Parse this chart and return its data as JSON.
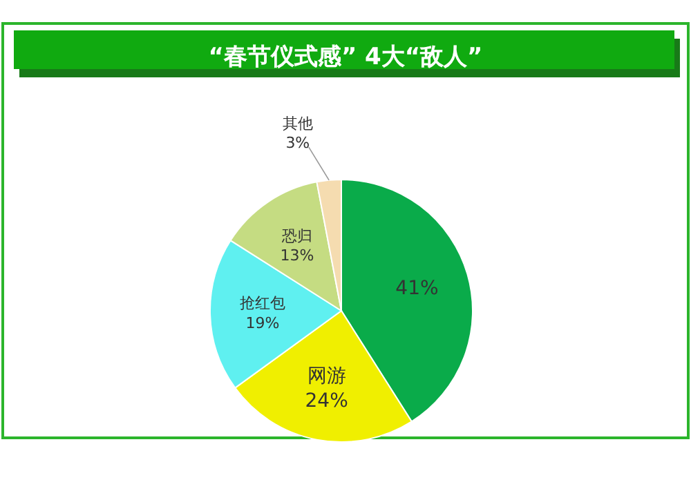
{
  "chart_data": {
    "type": "pie",
    "title": "“春节仪式感” 4大“敌人”",
    "categories": [
      null,
      "网游",
      "抢红包",
      "恐归",
      "其他"
    ],
    "values": [
      41,
      24,
      19,
      13,
      3
    ],
    "colors": [
      "#0aab4a",
      "#f0ef00",
      "#5ff0f0",
      "#c5dc82",
      "#f5dcb0"
    ],
    "value_labels": [
      "41%",
      "24%",
      "19%",
      "13%",
      "3%"
    ]
  }
}
